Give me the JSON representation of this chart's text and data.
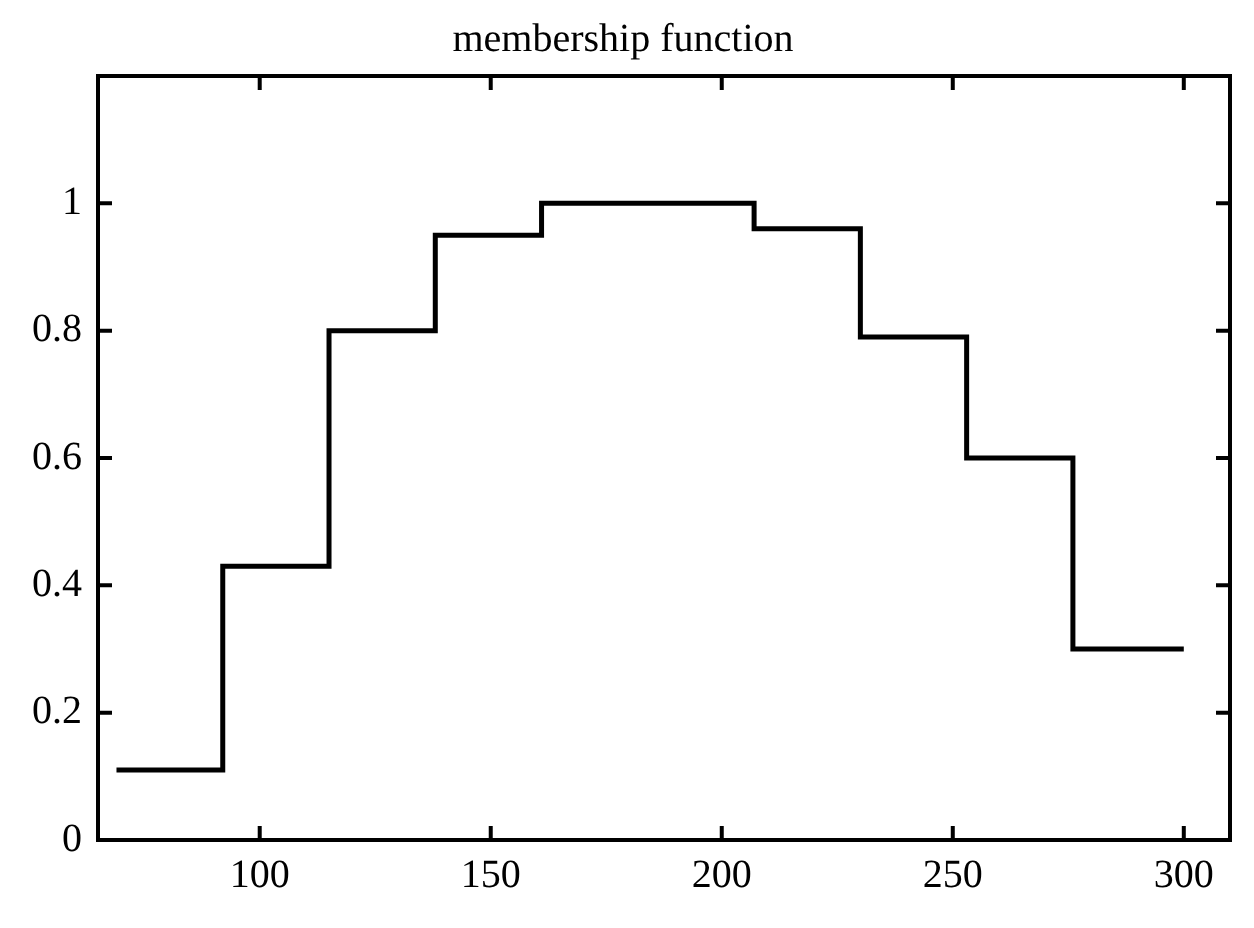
{
  "chart_data": {
    "type": "step",
    "title": "membership function",
    "x": [
      69,
      92,
      115,
      138,
      161,
      207,
      230,
      253,
      276,
      300
    ],
    "values": [
      0.11,
      0.43,
      0.8,
      0.95,
      1,
      0.96,
      0.79,
      0.6,
      0.3,
      0.3
    ],
    "color": "#000000",
    "xlim": [
      65,
      310
    ],
    "xticks": [
      100,
      150,
      200,
      250,
      300
    ],
    "ylim": [
      0,
      1.2
    ],
    "yticks": [
      0,
      0.2,
      0.4,
      0.6,
      0.8,
      1
    ],
    "legend": false
  }
}
